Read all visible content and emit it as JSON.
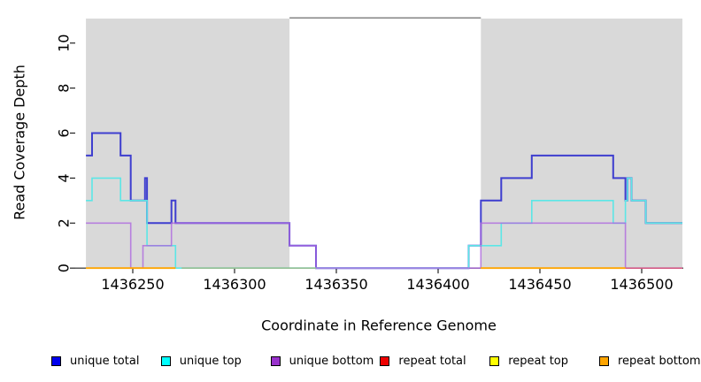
{
  "chart_data": {
    "type": "line",
    "subtype": "step-coverage",
    "title": "",
    "xlabel": "Coordinate in Reference Genome",
    "ylabel": "Read Coverage Depth",
    "xlim": [
      1436222,
      1436521
    ],
    "ylim": [
      0,
      11.1
    ],
    "grid": false,
    "legend_position": "bottom",
    "x_ticks": [
      1436250,
      1436300,
      1436350,
      1436400,
      1436450,
      1436500
    ],
    "x_tick_labels": [
      "1436250",
      "1436300",
      "1436350",
      "1436400",
      "1436450",
      "1436500"
    ],
    "y_ticks": [
      0,
      2,
      4,
      6,
      8,
      10
    ],
    "y_tick_labels": [
      "0",
      "2",
      "4",
      "6",
      "8",
      "10"
    ],
    "shaded_regions": [
      {
        "name": "repeat-region-left",
        "x0": 1436227,
        "x1": 1436327,
        "color": "#D9D9D9"
      },
      {
        "name": "repeat-region-right",
        "x0": 1436421,
        "x1": 1436520,
        "color": "#D9D9D9"
      }
    ],
    "gap_top_line": {
      "x0": 1436327,
      "x1": 1436421,
      "color": "#858585"
    },
    "series": [
      {
        "name": "unique total",
        "color": "#0000EE",
        "line_color": "#2222CC",
        "opacity": 0.85,
        "width": 2.0,
        "parts": [
          {
            "steps": [
              [
                1436227,
                5
              ],
              [
                1436230,
                6
              ],
              [
                1436244,
                5
              ],
              [
                1436249,
                3
              ],
              [
                1436256,
                4
              ],
              [
                1436257,
                2
              ],
              [
                1436269,
                3
              ],
              [
                1436271,
                2
              ],
              [
                1436327,
                1
              ],
              [
                1436340,
                0
              ],
              [
                1436415,
                1
              ],
              [
                1436421,
                3
              ],
              [
                1436431,
                4
              ],
              [
                1436446,
                5
              ],
              [
                1436486,
                4
              ],
              [
                1436492,
                3
              ],
              [
                1436493,
                4
              ],
              [
                1436495,
                3
              ],
              [
                1436502,
                2
              ]
            ],
            "x_end": 1436520
          }
        ]
      },
      {
        "name": "unique top",
        "color": "#00FFFF",
        "line_color": "#5CE6E6",
        "opacity": 1.0,
        "width": 1.6,
        "parts": [
          {
            "steps": [
              [
                1436227,
                3
              ],
              [
                1436230,
                4
              ],
              [
                1436244,
                3
              ],
              [
                1436257,
                1
              ],
              [
                1436271,
                0
              ],
              [
                1436415,
                1
              ],
              [
                1436431,
                2
              ],
              [
                1436446,
                3
              ],
              [
                1436486,
                2
              ],
              [
                1436492,
                3
              ],
              [
                1436493,
                4
              ],
              [
                1436495,
                3
              ],
              [
                1436502,
                2
              ]
            ],
            "x_end": 1436520
          }
        ]
      },
      {
        "name": "unique bottom",
        "color": "#9932CC",
        "line_color": "#AE68DE",
        "opacity": 0.8,
        "width": 1.6,
        "parts": [
          {
            "steps": [
              [
                1436227,
                2
              ],
              [
                1436249,
                0
              ],
              [
                1436255,
                1
              ],
              [
                1436269,
                2
              ],
              [
                1436327,
                1
              ],
              [
                1436340,
                0
              ],
              [
                1436421,
                2
              ],
              [
                1436492,
                0
              ]
            ],
            "x_end": 1436520
          }
        ]
      },
      {
        "name": "repeat total",
        "color": "#EE0000",
        "line_color": "#D4567F",
        "opacity": 1.0,
        "width": 1.5,
        "parts": [
          {
            "steps": [
              [
                1436227,
                0
              ]
            ],
            "x_end": 1436271
          },
          {
            "steps": [
              [
                1436421,
                0
              ]
            ],
            "x_end": 1436520
          }
        ]
      },
      {
        "name": "repeat top",
        "color": "#FFFF00",
        "line_color": "#FFFF00",
        "opacity": 1.0,
        "width": 1.5,
        "parts": [
          {
            "steps": [
              [
                1436227,
                0
              ]
            ],
            "x_end": 1436271
          },
          {
            "steps": [
              [
                1436421,
                0
              ]
            ],
            "x_end": 1436492
          }
        ]
      },
      {
        "name": "repeat bottom",
        "color": "#FFA500",
        "line_color": "#FFA500",
        "opacity": 1.0,
        "width": 1.8,
        "parts": [
          {
            "steps": [
              [
                1436227,
                0
              ]
            ],
            "x_end": 1436271
          },
          {
            "steps": [
              [
                1436421,
                0
              ]
            ],
            "x_end": 1436492
          }
        ]
      }
    ],
    "extra_segments": [
      {
        "name": "baseline-green-segment",
        "x0": 1436274,
        "x1": 1436340,
        "y": 0,
        "color": "#93BE93",
        "width": 1.6
      }
    ],
    "legend": [
      {
        "label": "unique total",
        "color": "#0000EE"
      },
      {
        "label": "unique top",
        "color": "#00FFFF"
      },
      {
        "label": "unique bottom",
        "color": "#9932CC"
      },
      {
        "label": "repeat total",
        "color": "#EE0000"
      },
      {
        "label": "repeat top",
        "color": "#FFFF00"
      },
      {
        "label": "repeat bottom",
        "color": "#FFA500"
      }
    ]
  }
}
